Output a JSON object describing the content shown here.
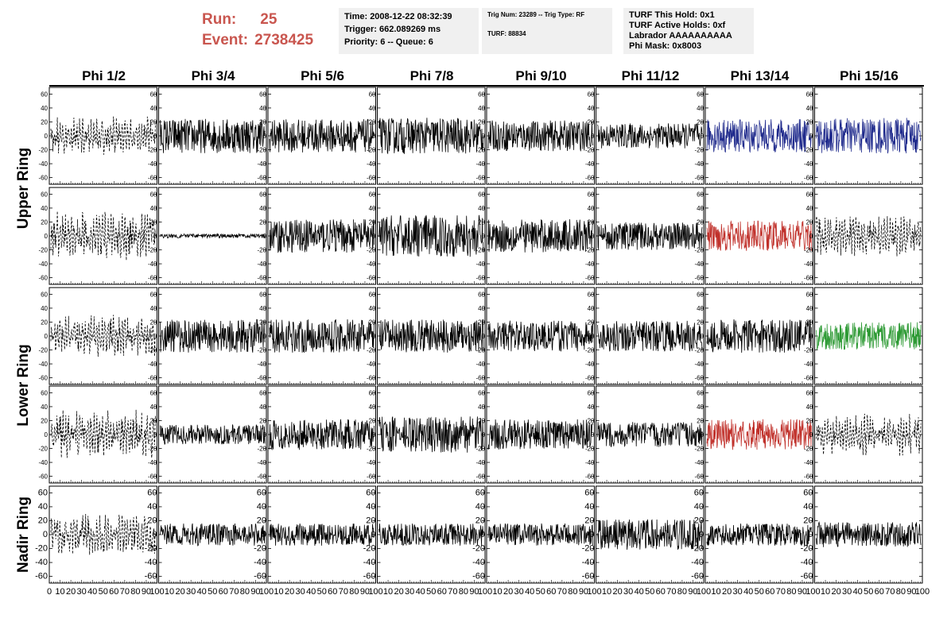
{
  "header": {
    "run_label": "Run:",
    "run_value": "25",
    "event_label": "Event:",
    "event_value": "2738425",
    "box1": [
      "Time: 2008-12-22 08:32:39",
      "Trigger: 662.089269 ms",
      "Priority: 6 -- Queue: 6"
    ],
    "box2": [
      "Trig Num: 23289 -- Trig Type: RF",
      "",
      "TURF: 88834"
    ],
    "box3": [
      "TURF This Hold: 0x1",
      "TURF Active Holds: 0xf",
      "Labrador AAAAAAAAAA",
      "Phi Mask: 0x8003"
    ]
  },
  "chart_data": {
    "type": "line",
    "columns": [
      "Phi 1/2",
      "Phi 3/4",
      "Phi 5/6",
      "Phi 7/8",
      "Phi 9/10",
      "Phi 11/12",
      "Phi 13/14",
      "Phi 15/16"
    ],
    "ring_labels": [
      "Upper Ring",
      "Lower Ring",
      "Nadir Ring"
    ],
    "xlim": [
      0,
      100
    ],
    "ylim": [
      -65,
      65
    ],
    "yticks": [
      -60,
      -40,
      -20,
      0,
      20,
      40,
      60
    ],
    "xticks": [
      0,
      10,
      20,
      30,
      40,
      50,
      60,
      70,
      80,
      90,
      100
    ],
    "rows": [
      {
        "name": "Upper Ring top",
        "styles": [
          "dash",
          "solid",
          "solid",
          "solid",
          "solid",
          "solid",
          "blue",
          "blue"
        ],
        "amp": [
          22,
          25,
          24,
          26,
          22,
          18,
          24,
          26
        ]
      },
      {
        "name": "Upper Ring bottom",
        "styles": [
          "dash",
          "flat",
          "solid",
          "solid",
          "solid",
          "solid",
          "red",
          "dash"
        ],
        "amp": [
          28,
          3,
          24,
          30,
          24,
          20,
          22,
          24
        ]
      },
      {
        "name": "Lower Ring top",
        "styles": [
          "dash",
          "solid",
          "solid",
          "solid",
          "solid",
          "solid",
          "solid",
          "green"
        ],
        "amp": [
          24,
          24,
          24,
          24,
          22,
          22,
          24,
          20
        ]
      },
      {
        "name": "Lower Ring bottom",
        "styles": [
          "dash",
          "solid",
          "solid",
          "solid",
          "solid",
          "solid",
          "red",
          "dash"
        ],
        "amp": [
          28,
          14,
          22,
          26,
          22,
          18,
          22,
          24
        ]
      },
      {
        "name": "Nadir Ring",
        "styles": [
          "dash",
          "solid",
          "solid",
          "solid",
          "solid",
          "solid",
          "solid",
          "solid"
        ],
        "amp": [
          24,
          16,
          16,
          16,
          16,
          22,
          16,
          18
        ]
      }
    ],
    "colors": {
      "solid": "#000000",
      "dash": "#000000",
      "flat": "#000000",
      "blue": "#1f2a8c",
      "red": "#c0302a",
      "green": "#2e9a35"
    }
  }
}
